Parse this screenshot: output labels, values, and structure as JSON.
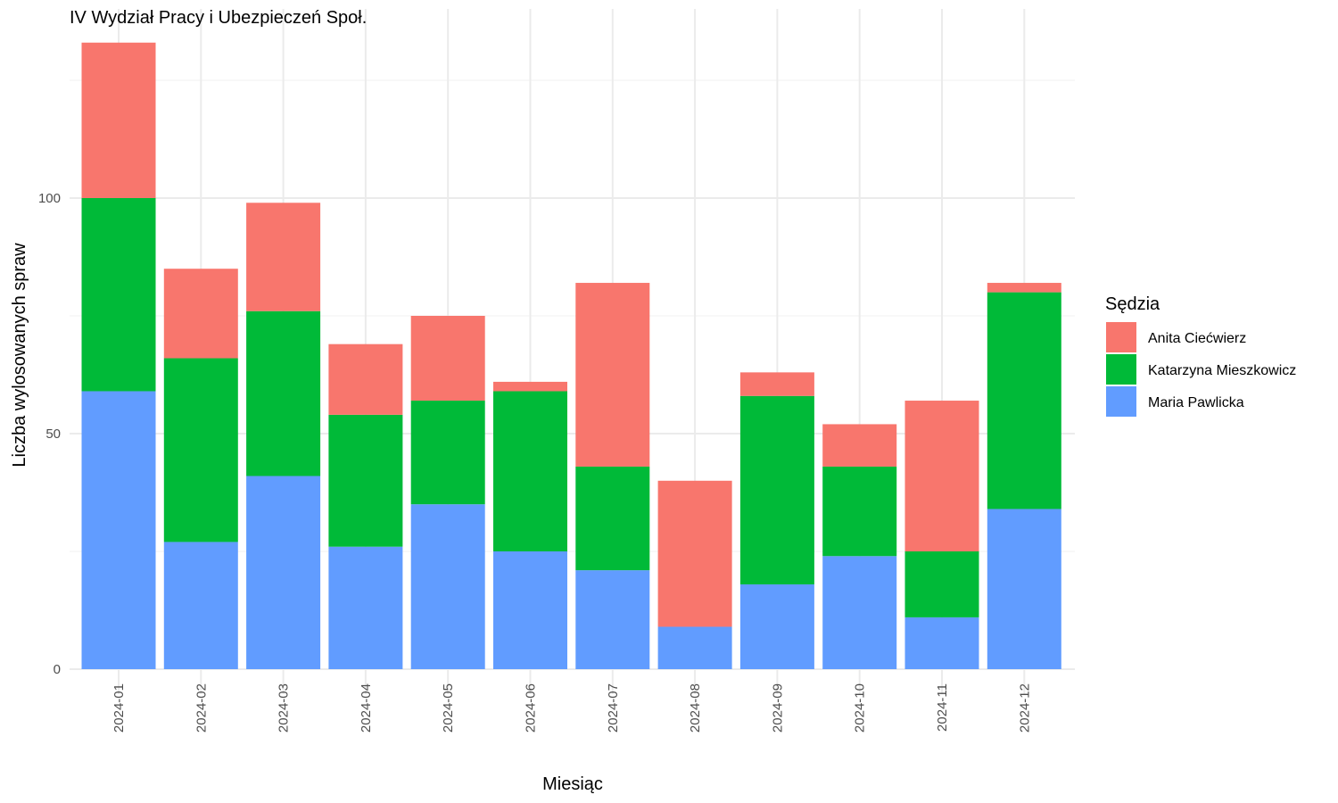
{
  "chart_data": {
    "type": "bar",
    "stacked": true,
    "title": "IV Wydział Pracy i Ubezpieczeń Społ.",
    "xlabel": "Miesiąc",
    "ylabel": "Liczba wylosowanych spraw",
    "ylim": [
      0,
      133
    ],
    "yticks": [
      0,
      50,
      100
    ],
    "grid": true,
    "legend_title": "Sędzia",
    "legend_position": "right",
    "categories": [
      "2024-01",
      "2024-02",
      "2024-03",
      "2024-04",
      "2024-05",
      "2024-06",
      "2024-07",
      "2024-08",
      "2024-09",
      "2024-10",
      "2024-11",
      "2024-12"
    ],
    "series": [
      {
        "name": "Maria Pawlicka",
        "color": "#619CFF",
        "values": [
          59,
          27,
          41,
          26,
          35,
          25,
          21,
          9,
          18,
          24,
          11,
          34
        ]
      },
      {
        "name": "Katarzyna Mieszkowicz",
        "color": "#00BA38",
        "values": [
          41,
          39,
          35,
          28,
          22,
          34,
          22,
          0,
          40,
          19,
          14,
          46
        ]
      },
      {
        "name": "Anita Ciećwierz",
        "color": "#F8766D",
        "values": [
          33,
          19,
          23,
          15,
          18,
          2,
          39,
          31,
          5,
          9,
          32,
          2
        ]
      }
    ],
    "legend_order": [
      "Anita Ciećwierz",
      "Katarzyna Mieszkowicz",
      "Maria Pawlicka"
    ]
  }
}
